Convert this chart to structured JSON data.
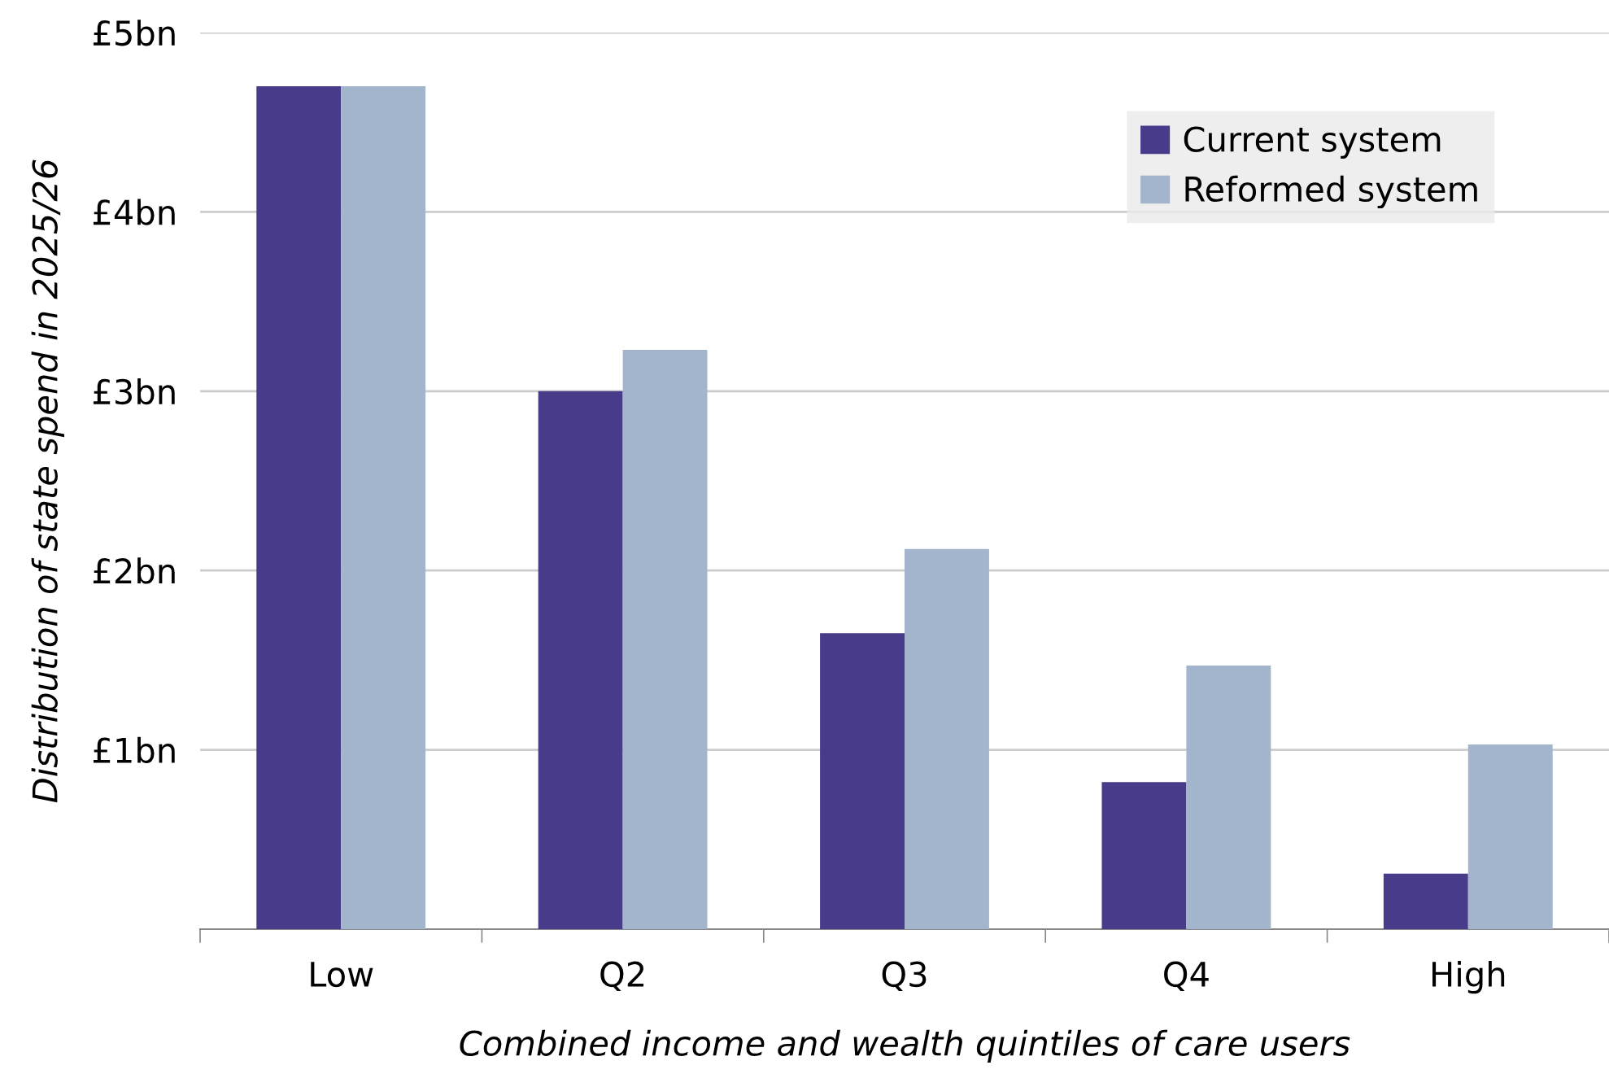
{
  "chart_data": {
    "type": "bar",
    "xlabel": "Combined income and wealth quintiles of care users",
    "ylabel": "Distribution of state spend in 2025/26",
    "categories": [
      "Low",
      "Q2",
      "Q3",
      "Q4",
      "High"
    ],
    "series": [
      {
        "name": "Current system",
        "color": "#473b8a",
        "values": [
          4.7,
          3.0,
          1.65,
          0.82,
          0.31
        ]
      },
      {
        "name": "Reformed system",
        "color": "#a3b5cd",
        "values": [
          4.7,
          3.23,
          2.12,
          1.47,
          1.03
        ]
      }
    ],
    "ylim": [
      0,
      5
    ],
    "yticks": [
      {
        "value": 1,
        "label": "£1bn"
      },
      {
        "value": 2,
        "label": "£2bn"
      },
      {
        "value": 3,
        "label": "£3bn"
      },
      {
        "value": 4,
        "label": "£4bn"
      },
      {
        "value": 5,
        "label": "£5bn"
      }
    ],
    "grid": "y",
    "legend": "top right"
  }
}
